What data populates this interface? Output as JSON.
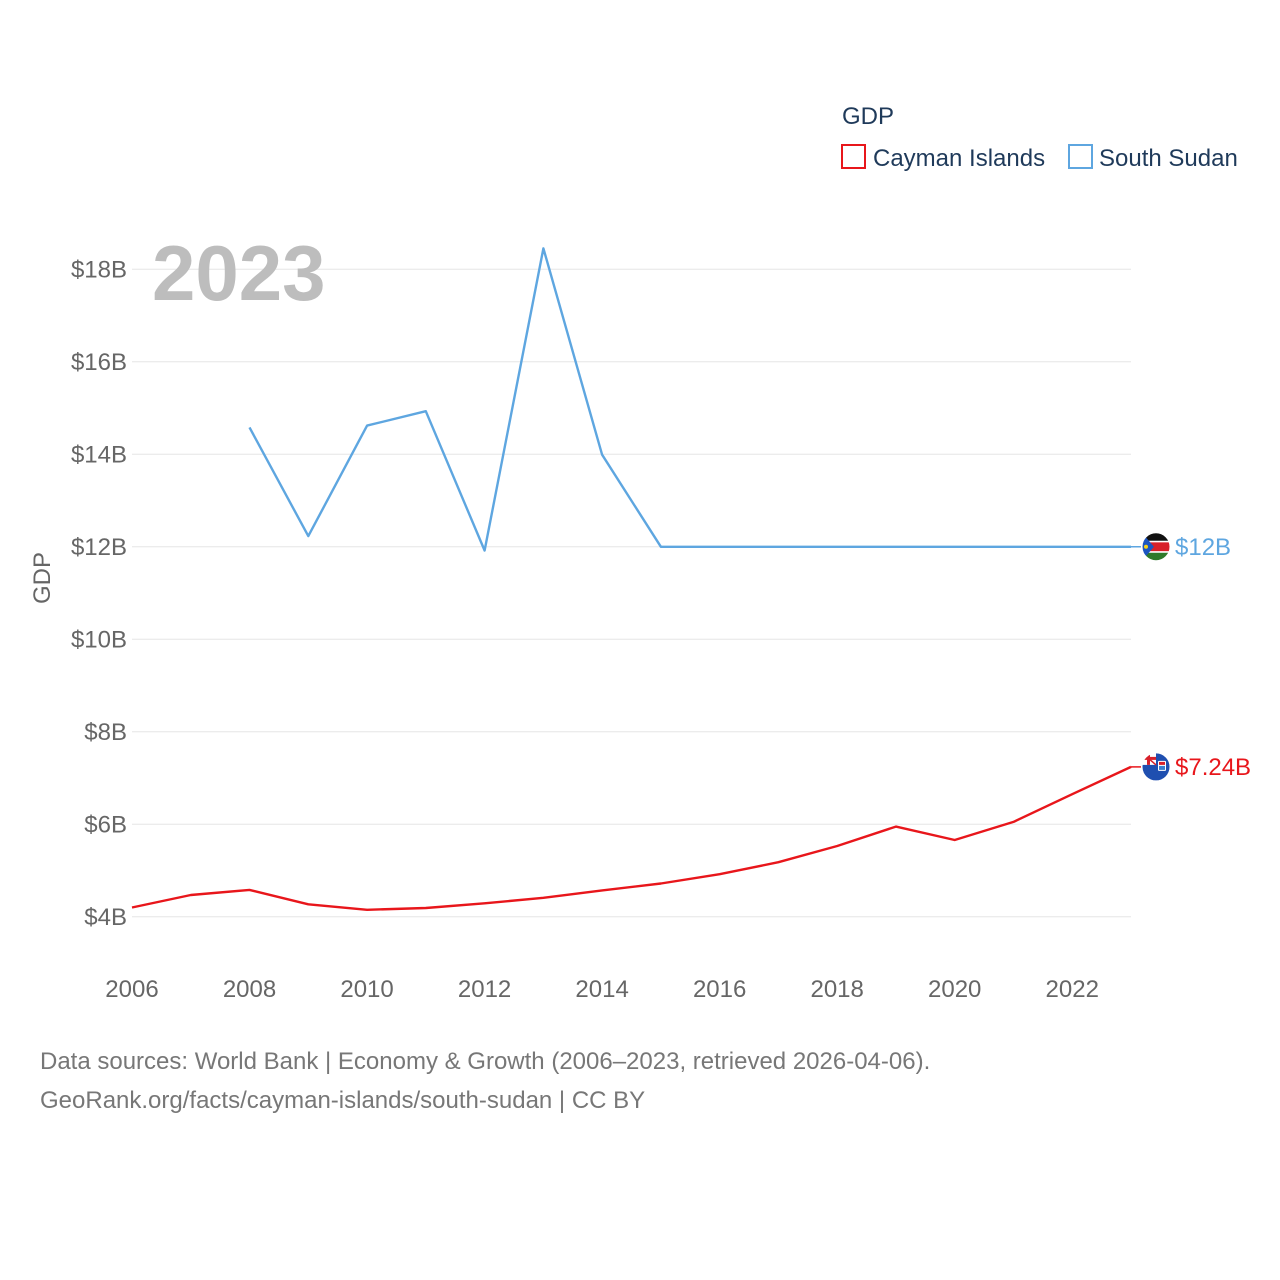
{
  "legend": {
    "title": "GDP",
    "items": [
      {
        "label": "Cayman Islands",
        "color": "#e8161b"
      },
      {
        "label": "South Sudan",
        "color": "#5ea6e0"
      }
    ]
  },
  "year_label": "2023",
  "source": {
    "line1": "Data sources: World Bank | Economy & Growth (2006–2023, retrieved 2026-04-06).",
    "line2": "GeoRank.org/facts/cayman-islands/south-sudan | CC BY"
  },
  "chart_data": {
    "type": "line",
    "title": "GDP",
    "xlabel": "",
    "ylabel": "GDP",
    "xlim": [
      2006,
      2023
    ],
    "ylim": [
      3,
      19
    ],
    "x_ticks": [
      2006,
      2008,
      2010,
      2012,
      2014,
      2016,
      2018,
      2020,
      2022
    ],
    "y_ticks": [
      4,
      6,
      8,
      10,
      12,
      14,
      16,
      18
    ],
    "y_tick_labels": [
      "$4B",
      "$6B",
      "$8B",
      "$10B",
      "$12B",
      "$14B",
      "$16B",
      "$18B"
    ],
    "grid": true,
    "legend_position": "top-right",
    "series": [
      {
        "name": "Cayman Islands",
        "color": "#e8161b",
        "end_label": "$7.24B",
        "flag": "cayman-islands-flag-icon",
        "points": [
          [
            2006,
            4.2
          ],
          [
            2007,
            4.47
          ],
          [
            2008,
            4.58
          ],
          [
            2009,
            4.27
          ],
          [
            2010,
            4.15
          ],
          [
            2011,
            4.19
          ],
          [
            2012,
            4.29
          ],
          [
            2013,
            4.41
          ],
          [
            2014,
            4.57
          ],
          [
            2015,
            4.72
          ],
          [
            2016,
            4.92
          ],
          [
            2017,
            5.18
          ],
          [
            2018,
            5.53
          ],
          [
            2019,
            5.95
          ],
          [
            2020,
            5.66
          ],
          [
            2021,
            6.05
          ],
          [
            2022,
            6.65
          ],
          [
            2023,
            7.24
          ]
        ]
      },
      {
        "name": "South Sudan",
        "color": "#5ea6e0",
        "end_label": "$12B",
        "flag": "south-sudan-flag-icon",
        "points": [
          [
            2008,
            14.58
          ],
          [
            2009,
            12.23
          ],
          [
            2010,
            14.62
          ],
          [
            2011,
            14.93
          ],
          [
            2012,
            11.92
          ],
          [
            2013,
            18.45
          ],
          [
            2014,
            13.99
          ],
          [
            2015,
            12.0
          ],
          [
            2016,
            12.0
          ],
          [
            2017,
            12.0
          ],
          [
            2018,
            12.0
          ],
          [
            2019,
            12.0
          ],
          [
            2020,
            12.0
          ],
          [
            2021,
            12.0
          ],
          [
            2022,
            12.0
          ],
          [
            2023,
            12.0
          ]
        ]
      }
    ]
  }
}
